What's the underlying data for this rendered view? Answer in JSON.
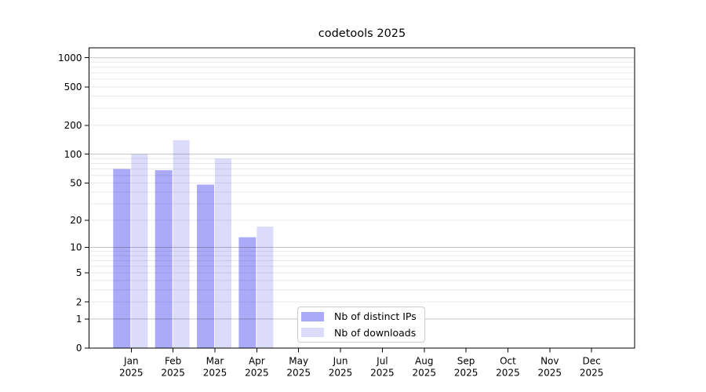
{
  "chart_data": {
    "type": "bar",
    "title": "codetools 2025",
    "x": {
      "categories": [
        "Jan",
        "Feb",
        "Mar",
        "Apr",
        "May",
        "Jun",
        "Jul",
        "Aug",
        "Sep",
        "Oct",
        "Nov",
        "Dec"
      ],
      "year_label": "2025"
    },
    "y": {
      "scale": "log10(value+1)",
      "ticks": [
        0,
        1,
        2,
        5,
        10,
        20,
        50,
        100,
        200,
        500,
        1000
      ],
      "ylim": [
        0,
        1250
      ]
    },
    "series": [
      {
        "name": "Nb of distinct IPs",
        "color": "#aaaaf9",
        "values": [
          70,
          68,
          48,
          13,
          null,
          null,
          null,
          null,
          null,
          null,
          null,
          null
        ]
      },
      {
        "name": "Nb of downloads",
        "color": "#dcdcfa",
        "values": [
          100,
          140,
          90,
          17,
          null,
          null,
          null,
          null,
          null,
          null,
          null,
          null
        ]
      }
    ],
    "grid": {
      "major_values": [
        1,
        10,
        100,
        1000
      ],
      "minor_multipliers": [
        2,
        3,
        4,
        5,
        6,
        7,
        8,
        9
      ],
      "minor_decades": [
        1,
        10,
        100
      ],
      "major_color": "rgba(0,0,0,0.24)",
      "minor_color": "rgba(0,0,0,0.085)"
    },
    "legend_position": "lower-center"
  }
}
